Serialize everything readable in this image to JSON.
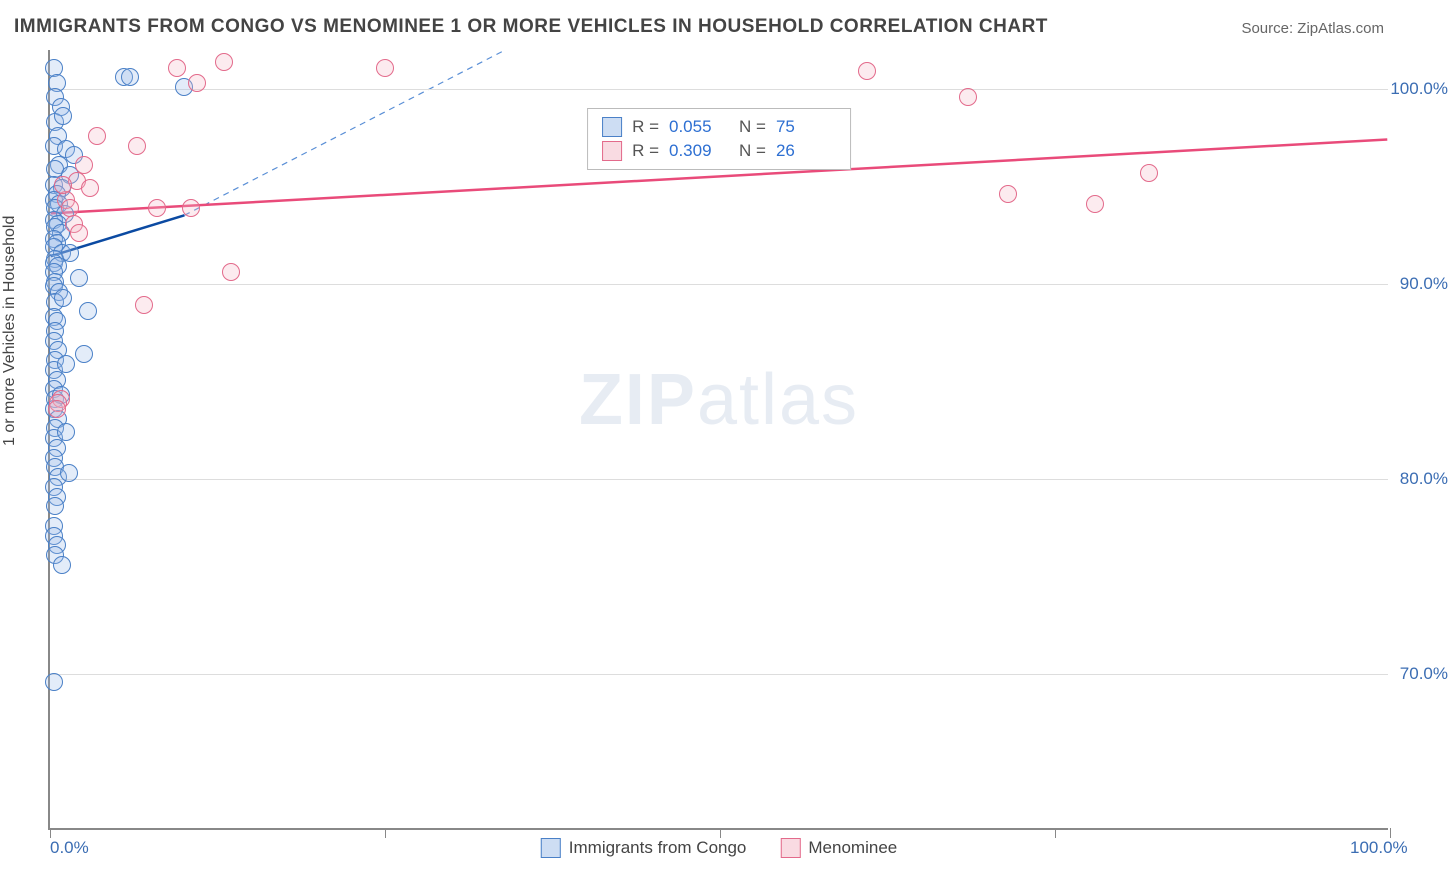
{
  "title": "IMMIGRANTS FROM CONGO VS MENOMINEE 1 OR MORE VEHICLES IN HOUSEHOLD CORRELATION CHART",
  "source": "Source: ZipAtlas.com",
  "watermark_bold": "ZIP",
  "watermark_light": "atlas",
  "chart": {
    "type": "scatter",
    "background_color": "#ffffff",
    "grid_color": "#dddddd",
    "axis_color": "#888888",
    "xlim": [
      0,
      100
    ],
    "ylim": [
      62,
      102
    ],
    "xticks": [
      0,
      25,
      50,
      75,
      100
    ],
    "xtick_labels": [
      "0.0%",
      "",
      "",
      "",
      "100.0%"
    ],
    "yticks": [
      70,
      80,
      90,
      100
    ],
    "ytick_labels": [
      "70.0%",
      "80.0%",
      "90.0%",
      "100.0%"
    ],
    "ylabel": "1 or more Vehicles in Household",
    "label_fontsize": 16,
    "tick_fontsize": 17,
    "tick_color": "#3b6db3",
    "marker_radius": 9,
    "marker_stroke_width": 1.5,
    "marker_fill_opacity": 0.28,
    "series": [
      {
        "name": "Immigrants from Congo",
        "legend_label": "Immigrants from Congo",
        "fill_color": "#9bbce8",
        "stroke_color": "#4a80c7",
        "R": "0.055",
        "N": "75",
        "trend": {
          "x1": 0,
          "y1": 91.4,
          "x2": 10,
          "y2": 93.5,
          "color": "#0b4aa2",
          "width": 2.5,
          "dash": "none"
        },
        "trend_ext": {
          "x1": 10,
          "y1": 93.5,
          "x2": 34,
          "y2": 102,
          "color": "#5a8fd6",
          "width": 1.2,
          "dash": "6 5"
        },
        "points": [
          [
            0.3,
            101.0
          ],
          [
            0.5,
            100.2
          ],
          [
            0.4,
            99.5
          ],
          [
            0.8,
            99.0
          ],
          [
            0.4,
            98.2
          ],
          [
            1.0,
            98.5
          ],
          [
            0.6,
            97.5
          ],
          [
            0.3,
            97.0
          ],
          [
            1.2,
            96.8
          ],
          [
            0.7,
            96.0
          ],
          [
            0.4,
            95.8
          ],
          [
            1.5,
            95.5
          ],
          [
            0.3,
            95.0
          ],
          [
            0.9,
            94.8
          ],
          [
            0.5,
            94.5
          ],
          [
            0.3,
            94.2
          ],
          [
            0.7,
            94.0
          ],
          [
            0.4,
            93.8
          ],
          [
            1.1,
            93.5
          ],
          [
            0.3,
            93.2
          ],
          [
            0.6,
            93.0
          ],
          [
            0.4,
            92.8
          ],
          [
            0.8,
            92.5
          ],
          [
            0.3,
            92.2
          ],
          [
            0.5,
            92.0
          ],
          [
            0.3,
            91.8
          ],
          [
            0.9,
            91.5
          ],
          [
            0.4,
            91.2
          ],
          [
            0.3,
            91.0
          ],
          [
            0.6,
            90.8
          ],
          [
            0.3,
            90.5
          ],
          [
            2.2,
            90.2
          ],
          [
            0.4,
            90.0
          ],
          [
            0.3,
            89.8
          ],
          [
            0.7,
            89.5
          ],
          [
            0.4,
            89.0
          ],
          [
            2.8,
            88.5
          ],
          [
            0.3,
            88.2
          ],
          [
            0.5,
            88.0
          ],
          [
            0.4,
            87.5
          ],
          [
            0.3,
            87.0
          ],
          [
            0.6,
            86.5
          ],
          [
            0.4,
            86.0
          ],
          [
            2.5,
            86.3
          ],
          [
            0.3,
            85.5
          ],
          [
            0.5,
            85.0
          ],
          [
            0.3,
            84.5
          ],
          [
            0.4,
            84.0
          ],
          [
            0.3,
            83.5
          ],
          [
            0.6,
            83.0
          ],
          [
            0.4,
            82.5
          ],
          [
            0.3,
            82.0
          ],
          [
            1.2,
            82.3
          ],
          [
            0.5,
            81.5
          ],
          [
            0.3,
            81.0
          ],
          [
            0.4,
            80.5
          ],
          [
            0.6,
            80.0
          ],
          [
            0.3,
            79.5
          ],
          [
            0.5,
            79.0
          ],
          [
            0.4,
            78.5
          ],
          [
            0.3,
            77.5
          ],
          [
            0.3,
            77.0
          ],
          [
            0.5,
            76.5
          ],
          [
            0.4,
            76.0
          ],
          [
            0.3,
            69.5
          ],
          [
            5.5,
            100.5
          ],
          [
            6.0,
            100.5
          ],
          [
            10.0,
            100.0
          ],
          [
            1.8,
            96.5
          ],
          [
            1.5,
            91.5
          ],
          [
            1.0,
            89.2
          ],
          [
            1.2,
            85.8
          ],
          [
            0.8,
            84.2
          ],
          [
            1.4,
            80.2
          ],
          [
            0.9,
            75.5
          ]
        ]
      },
      {
        "name": "Menominee",
        "legend_label": "Menominee",
        "fill_color": "#f4b8c6",
        "stroke_color": "#e36a8b",
        "R": "0.309",
        "N": "26",
        "trend": {
          "x1": 0,
          "y1": 93.6,
          "x2": 100,
          "y2": 97.4,
          "color": "#e94b7a",
          "width": 2.5,
          "dash": "none"
        },
        "points": [
          [
            9.5,
            101.0
          ],
          [
            25.0,
            101.0
          ],
          [
            61.0,
            100.8
          ],
          [
            68.5,
            99.5
          ],
          [
            71.5,
            94.5
          ],
          [
            78.0,
            94.0
          ],
          [
            82.0,
            95.6
          ],
          [
            13.0,
            101.3
          ],
          [
            11.0,
            100.2
          ],
          [
            6.5,
            97.0
          ],
          [
            3.5,
            97.5
          ],
          [
            2.5,
            96.0
          ],
          [
            2.0,
            95.2
          ],
          [
            1.2,
            94.2
          ],
          [
            1.5,
            93.8
          ],
          [
            3.0,
            94.8
          ],
          [
            1.8,
            93.0
          ],
          [
            2.2,
            92.5
          ],
          [
            8.0,
            93.8
          ],
          [
            10.5,
            93.8
          ],
          [
            7.0,
            88.8
          ],
          [
            13.5,
            90.5
          ],
          [
            0.8,
            84.0
          ],
          [
            0.6,
            83.8
          ],
          [
            0.5,
            83.5
          ],
          [
            1.0,
            95.0
          ]
        ]
      }
    ]
  },
  "stats_labels": {
    "R": "R =",
    "N": "N ="
  }
}
